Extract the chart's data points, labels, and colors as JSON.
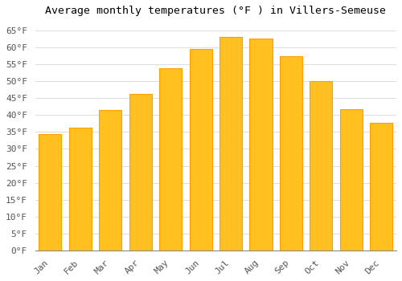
{
  "title": "Average monthly temperatures (°F ) in Villers-Semeuse",
  "months": [
    "Jan",
    "Feb",
    "Mar",
    "Apr",
    "May",
    "Jun",
    "Jul",
    "Aug",
    "Sep",
    "Oct",
    "Nov",
    "Dec"
  ],
  "values": [
    34.5,
    36.3,
    41.5,
    46.3,
    53.8,
    59.5,
    63.0,
    62.5,
    57.5,
    50.0,
    41.7,
    37.8
  ],
  "bar_color_face": "#FFC020",
  "bar_color_edge": "#FFA000",
  "ylim": [
    0,
    68
  ],
  "yticks": [
    0,
    5,
    10,
    15,
    20,
    25,
    30,
    35,
    40,
    45,
    50,
    55,
    60,
    65
  ],
  "background_color": "#FFFFFF",
  "grid_color": "#DDDDDD",
  "title_fontsize": 9.5,
  "tick_fontsize": 8,
  "font_family": "monospace"
}
